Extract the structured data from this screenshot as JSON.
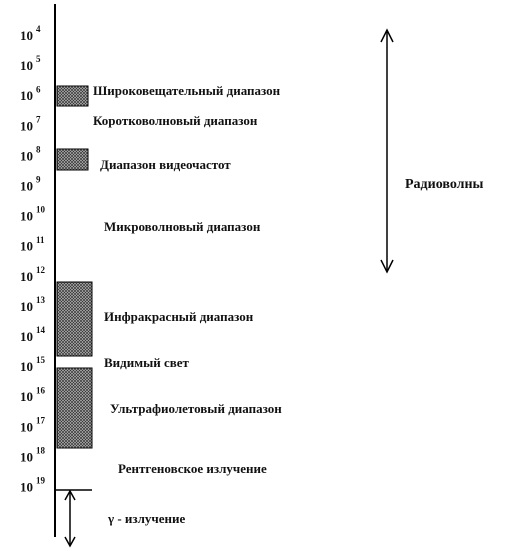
{
  "axis": {
    "ticks": [
      {
        "base": "10",
        "exp": "4"
      },
      {
        "base": "10",
        "exp": "5"
      },
      {
        "base": "10",
        "exp": "6"
      },
      {
        "base": "10",
        "exp": "7"
      },
      {
        "base": "10",
        "exp": "8"
      },
      {
        "base": "10",
        "exp": "9"
      },
      {
        "base": "10",
        "exp": "10"
      },
      {
        "base": "10",
        "exp": "11"
      },
      {
        "base": "10",
        "exp": "12"
      },
      {
        "base": "10",
        "exp": "13"
      },
      {
        "base": "10",
        "exp": "14"
      },
      {
        "base": "10",
        "exp": "15"
      },
      {
        "base": "10",
        "exp": "16"
      },
      {
        "base": "10",
        "exp": "17"
      },
      {
        "base": "10",
        "exp": "18"
      },
      {
        "base": "10",
        "exp": "19"
      }
    ]
  },
  "bands": [
    {
      "label": "Широковещательный диапазон"
    },
    {
      "label": "Коротковолновый диапазон"
    },
    {
      "label": "Диапазон видеочастот"
    },
    {
      "label": "Микроволновый диапазон"
    },
    {
      "label": "Инфракрасный диапазон"
    },
    {
      "label": "Видимый свет"
    },
    {
      "label": "Ультрафиолетовый диапазон"
    },
    {
      "label": "Рентгеновское излучение"
    },
    {
      "label": "γ - излучение"
    }
  ],
  "group": {
    "label": "Радиоволны"
  }
}
